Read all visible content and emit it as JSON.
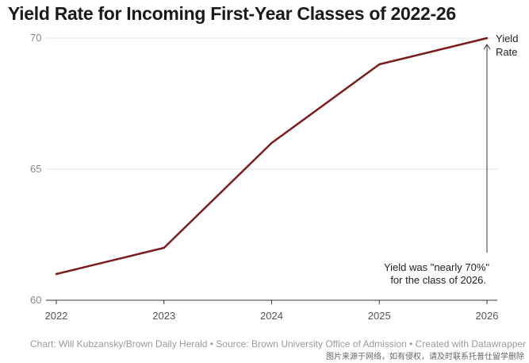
{
  "chart_data": {
    "type": "line",
    "title": "Yield Rate for Incoming First-Year Classes of 2022-26",
    "xlabel": "",
    "ylabel": "",
    "x": [
      "2022",
      "2023",
      "2024",
      "2025",
      "2026"
    ],
    "series": [
      {
        "name": "Yield Rate",
        "values": [
          61.0,
          62.0,
          66.0,
          69.0,
          70.0
        ],
        "color": "#7b1d1d"
      }
    ],
    "ylim": [
      60,
      70
    ],
    "yticks": [
      "70",
      "65",
      "60"
    ],
    "grid": true,
    "annotations": {
      "series_label": [
        "Yield",
        "Rate"
      ],
      "note": [
        "Yield was \"nearly 70%\"",
        "for the class of 2026."
      ]
    }
  },
  "footer": "Chart: Will Kubzansky/Brown Daily Herald • Source: Brown University Office of Admission • Created with Datawrapper",
  "watermark": "图片来源于网络，如有侵权，请及时联系托普仕留学删除"
}
